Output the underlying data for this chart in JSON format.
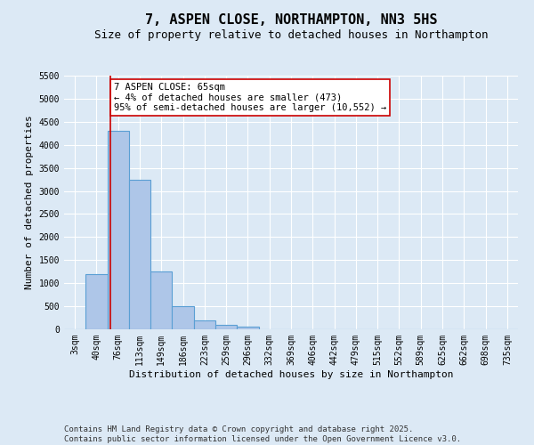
{
  "title": "7, ASPEN CLOSE, NORTHAMPTON, NN3 5HS",
  "subtitle": "Size of property relative to detached houses in Northampton",
  "xlabel": "Distribution of detached houses by size in Northampton",
  "ylabel": "Number of detached properties",
  "categories": [
    "3sqm",
    "40sqm",
    "76sqm",
    "113sqm",
    "149sqm",
    "186sqm",
    "223sqm",
    "259sqm",
    "296sqm",
    "332sqm",
    "369sqm",
    "406sqm",
    "442sqm",
    "479sqm",
    "515sqm",
    "552sqm",
    "589sqm",
    "625sqm",
    "662sqm",
    "698sqm",
    "735sqm"
  ],
  "bar_heights": [
    0,
    1200,
    4300,
    3250,
    1250,
    500,
    200,
    100,
    60,
    0,
    0,
    0,
    0,
    0,
    0,
    0,
    0,
    0,
    0,
    0,
    0
  ],
  "bar_color": "#aec6e8",
  "bar_edge_color": "#5a9fd4",
  "bar_edge_width": 0.8,
  "property_line_x": 1.65,
  "property_line_color": "#cc0000",
  "annotation_text": "7 ASPEN CLOSE: 65sqm\n← 4% of detached houses are smaller (473)\n95% of semi-detached houses are larger (10,552) →",
  "annotation_box_color": "#cc0000",
  "ylim": [
    0,
    5500
  ],
  "yticks": [
    0,
    500,
    1000,
    1500,
    2000,
    2500,
    3000,
    3500,
    4000,
    4500,
    5000,
    5500
  ],
  "bg_color": "#dce9f5",
  "plot_bg_color": "#dce9f5",
  "footer_text": "Contains HM Land Registry data © Crown copyright and database right 2025.\nContains public sector information licensed under the Open Government Licence v3.0.",
  "title_fontsize": 11,
  "subtitle_fontsize": 9,
  "axis_label_fontsize": 8,
  "tick_fontsize": 7,
  "footer_fontsize": 6.5,
  "annot_fontsize": 7.5
}
